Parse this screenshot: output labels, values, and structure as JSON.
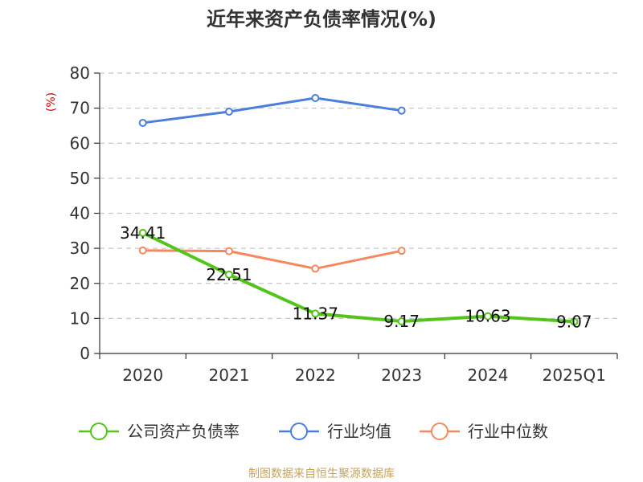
{
  "chart_data": {
    "type": "line",
    "title": "近年来资产负债率情况(%)",
    "ylabel": "(%)",
    "xlabel": "",
    "categories": [
      "2020",
      "2021",
      "2022",
      "2023",
      "2024",
      "2025Q1"
    ],
    "ylim": [
      0,
      80
    ],
    "yticks": [
      0,
      10,
      20,
      30,
      40,
      50,
      60,
      70,
      80
    ],
    "grid": true,
    "legend_position": "bottom",
    "series": [
      {
        "name": "公司资产负债率",
        "color": "#52c41a",
        "values": [
          34.41,
          22.51,
          11.37,
          9.17,
          10.63,
          9.07
        ],
        "labels": [
          "34.41",
          "22.51",
          "11.37",
          "9.17",
          "10.63",
          "9.07"
        ]
      },
      {
        "name": "行业均值",
        "color": "#4a7fdb",
        "values": [
          65.8,
          69.0,
          72.9,
          69.3,
          null,
          null
        ]
      },
      {
        "name": "行业中位数",
        "color": "#f4895f",
        "values": [
          29.4,
          29.2,
          24.2,
          29.3,
          null,
          null
        ]
      }
    ],
    "source": "制图数据来自恒生聚源数据库"
  }
}
